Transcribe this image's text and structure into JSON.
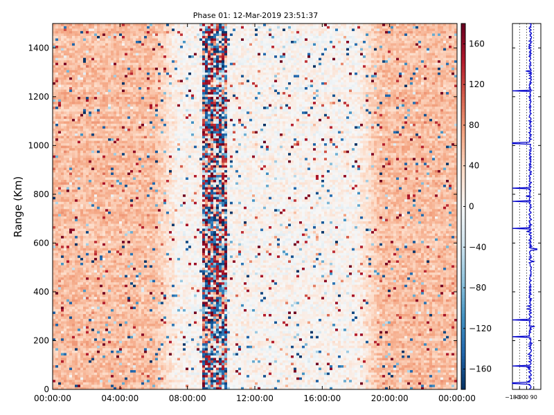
{
  "chart_data": [
    {
      "type": "heatmap",
      "title": "Phase 01: 12-Mar-2019 23:51:37",
      "xlabel": "",
      "ylabel": "Range (Km)",
      "x_tick_labels": [
        "00:00:00",
        "04:00:00",
        "08:00:00",
        "12:00:00",
        "16:00:00",
        "20:00:00",
        "00:00:00"
      ],
      "x_range": [
        "00:00:00",
        "24:00:00"
      ],
      "y_ticks": [
        0,
        200,
        400,
        600,
        800,
        1000,
        1200,
        1400
      ],
      "ylim": [
        0,
        1500
      ],
      "colorbar": {
        "ticks": [
          160,
          120,
          80,
          40,
          0,
          -40,
          -80,
          -120,
          -160
        ],
        "range": [
          -180,
          180
        ],
        "colormap": "RdBu_r",
        "low_color": "#053061",
        "mid_color": "#f7f7f7",
        "high_color": "#67001f"
      },
      "description_of_values": "phase in degrees; mean ~ +50 (light red) during 00:00-06:00 and 19:00-24:00, ~0 (white) during 07:00-18:00, with dark noisy columns near 09:00-10:00"
    },
    {
      "type": "line",
      "series": [
        {
          "color": "#0000cc"
        }
      ],
      "x_tick_labels": [
        "-180",
        "-90",
        "0",
        "90"
      ],
      "xlim": [
        -180,
        180
      ],
      "ylim": [
        0,
        1500
      ],
      "mean_value": 45,
      "spikes_at_range_km": [
        1225,
        1010,
        825,
        770,
        660,
        575,
        285,
        215,
        95,
        25
      ]
    }
  ]
}
